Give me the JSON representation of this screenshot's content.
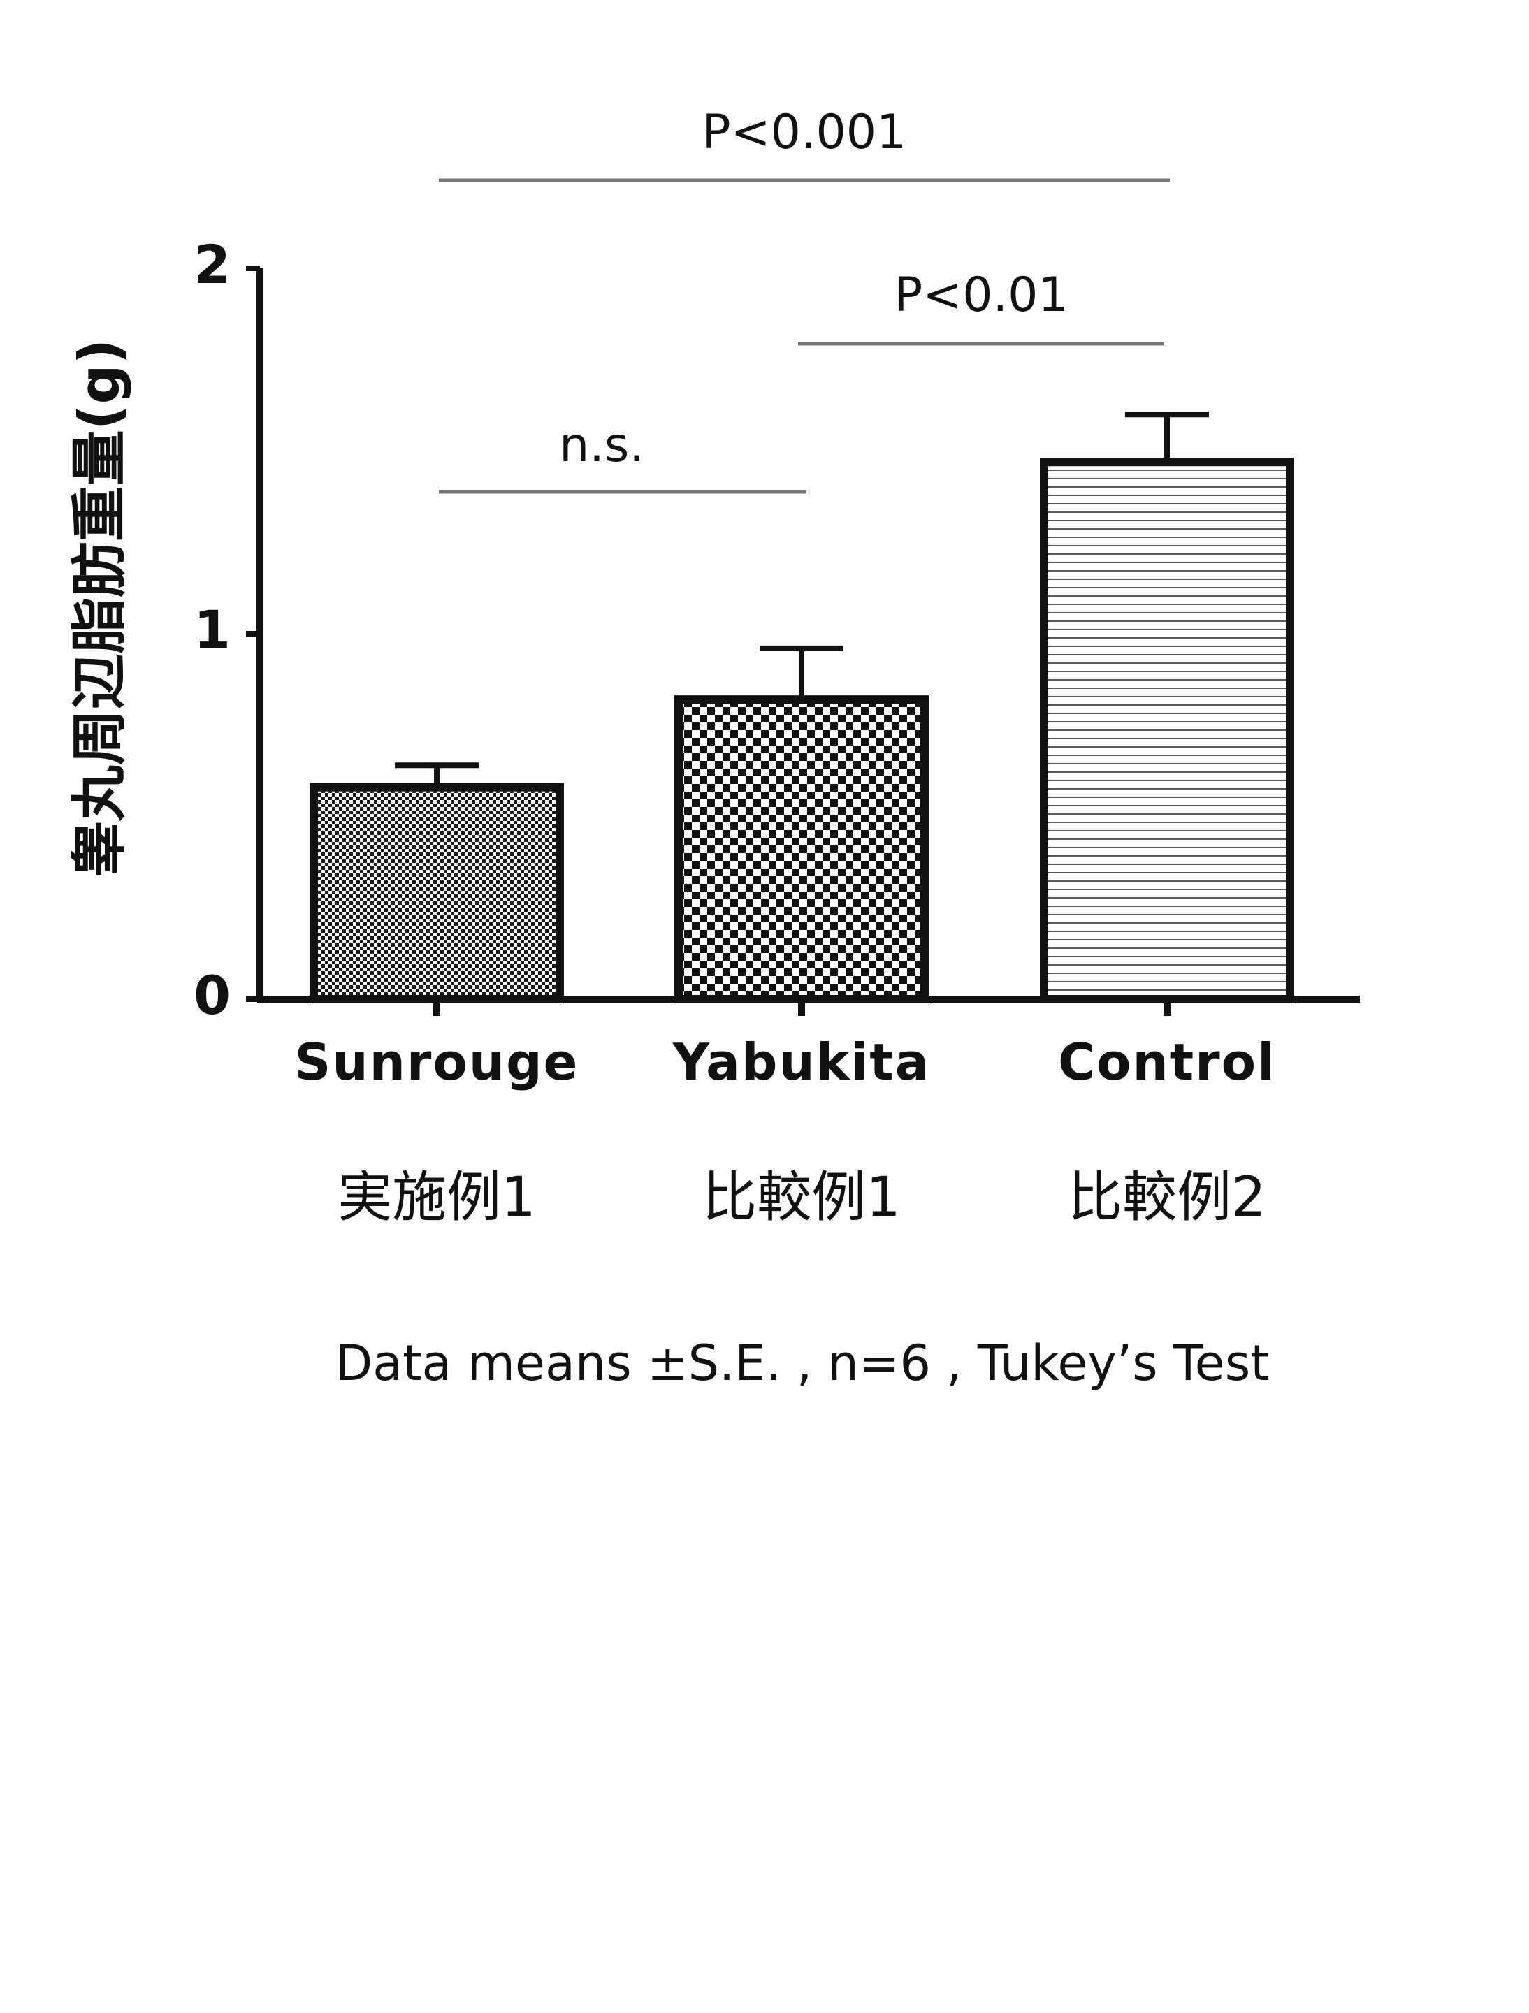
{
  "chart_data": {
    "type": "bar",
    "categories": [
      "Sunrouge",
      "Yabukita",
      "Control"
    ],
    "sublabels": [
      "実施例1",
      "比較例1",
      "比較例2"
    ],
    "values": [
      0.58,
      0.82,
      1.47
    ],
    "errors": [
      0.06,
      0.14,
      0.13
    ],
    "patterns": [
      "fine-check",
      "check",
      "h-lines"
    ],
    "ylabel": "睾丸周辺脂肪重量(g)",
    "xlabel": "",
    "ylim": [
      0,
      2
    ],
    "yticks": [
      "0",
      "1",
      "2"
    ],
    "comparisons": [
      {
        "from": 0,
        "to": 2,
        "label": "P<0.001",
        "level": "top"
      },
      {
        "from": 1,
        "to": 2,
        "label": "P<0.01",
        "level": "middle"
      },
      {
        "from": 0,
        "to": 1,
        "label": "n.s.",
        "level": "low"
      }
    ],
    "footnote": "Data means ±S.E. , n=6 , Tukey’s Test",
    "grid": false,
    "legend": "none"
  }
}
